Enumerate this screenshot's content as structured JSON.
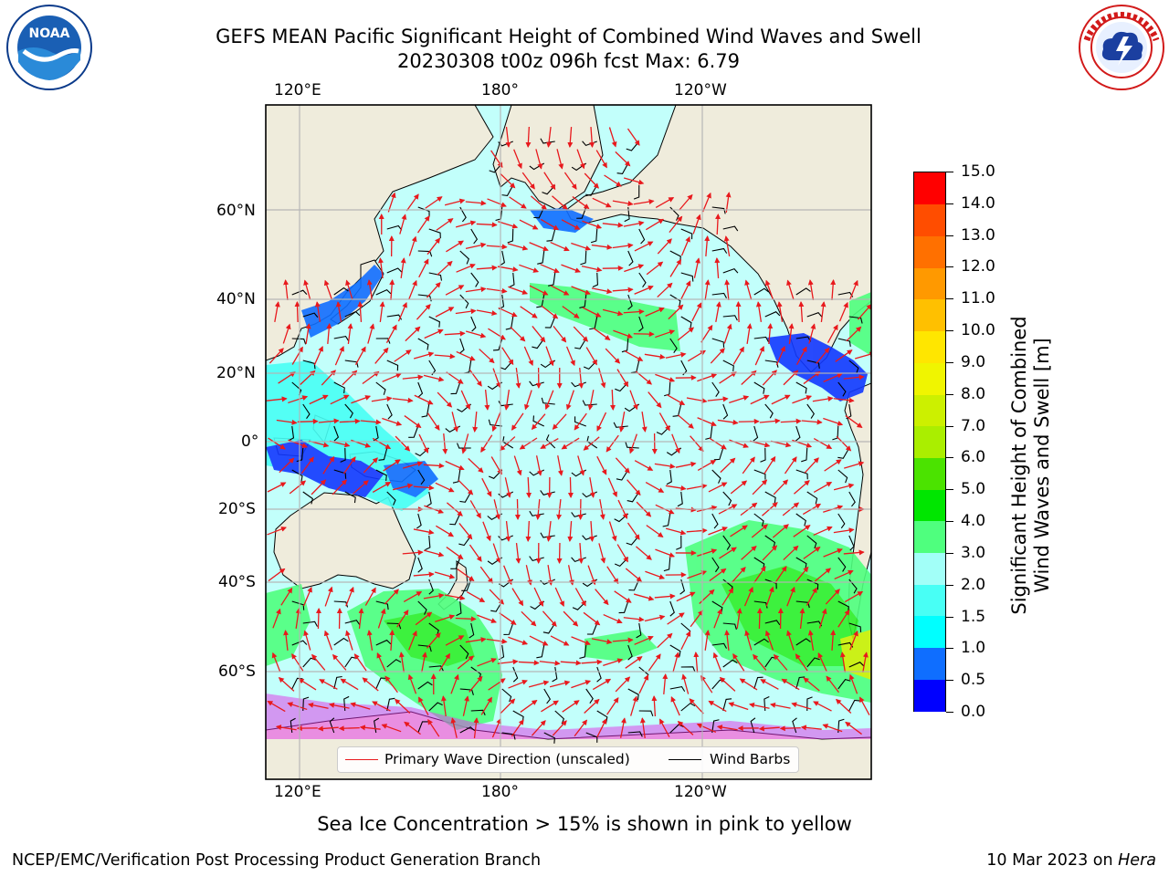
{
  "header": {
    "title_line1": "GEFS MEAN Pacific Significant Height of Combined Wind Waves and Swell",
    "title_line2": "20230308 t00z 096h fcst   Max: 6.79"
  },
  "map": {
    "top_lon_labels": [
      "120°E",
      "180°",
      "120°W"
    ],
    "bottom_lon_labels": [
      "120°E",
      "180°",
      "120°W"
    ],
    "lat_labels": [
      "60°N",
      "40°N",
      "20°N",
      "0°",
      "20°S",
      "40°S",
      "60°S"
    ],
    "colors": {
      "land": "#efecdc",
      "wave_arrow": "#e8191d",
      "wind_barb": "#000000",
      "grid": "#b4b4b4"
    }
  },
  "legend": {
    "primary_wave_label": "Primary Wave Direction (unscaled)",
    "wind_barb_label": "Wind Barbs"
  },
  "colorbar": {
    "title_line1": "Significant Height of Combined",
    "title_line2": "Wind Waves and Swell [m]",
    "ticks": [
      "0.0",
      "0.5",
      "1.0",
      "1.5",
      "2.0",
      "3.0",
      "4.0",
      "5.0",
      "6.0",
      "7.0",
      "8.0",
      "9.0",
      "10.0",
      "11.0",
      "12.0",
      "13.0",
      "14.0",
      "15.0"
    ],
    "colors": [
      "#0000ff",
      "#0f6eff",
      "#00ffff",
      "#48fff5",
      "#a2fff8",
      "#4fff7e",
      "#00e600",
      "#4be300",
      "#aaee00",
      "#ccf000",
      "#f0f500",
      "#ffe600",
      "#ffc000",
      "#ff9900",
      "#ff7000",
      "#ff4d00",
      "#ff0000"
    ]
  },
  "footer": {
    "sea_ice_note": "Sea Ice Concentration > 15% is shown in pink to yellow",
    "credit": "NCEP/EMC/Verification Post Processing Product Generation Branch",
    "date_prefix": "10 Mar 2023 on ",
    "machine": "Hera"
  },
  "logos": {
    "left_icon": "noaa-logo-icon",
    "right_icon": "nws-logo-icon",
    "noaa_text": "NOAA"
  }
}
